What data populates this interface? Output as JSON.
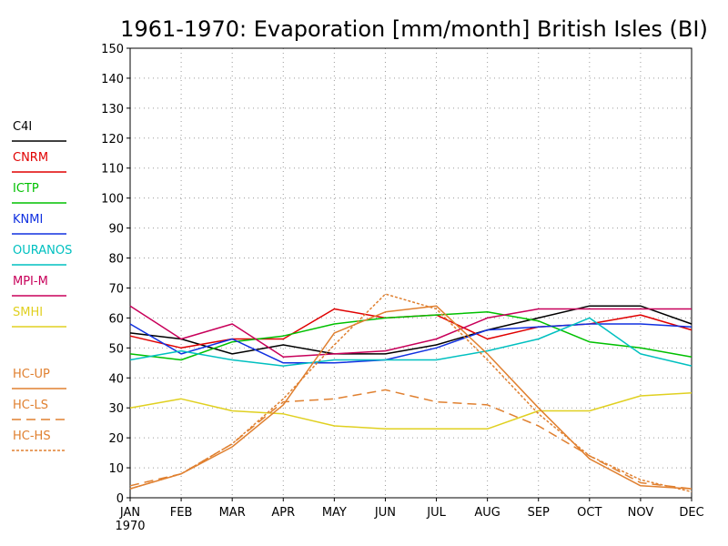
{
  "chart_data": {
    "type": "line",
    "title": "1961-1970: Evaporation [mm/month] British Isles (BI)",
    "categories": [
      "JAN",
      "FEB",
      "MAR",
      "APR",
      "MAY",
      "JUN",
      "JUL",
      "AUG",
      "SEP",
      "OCT",
      "NOV",
      "DEC"
    ],
    "x_sublabel": "1970",
    "ylim": [
      0,
      150
    ],
    "yticks": [
      0,
      10,
      20,
      30,
      40,
      50,
      60,
      70,
      80,
      90,
      100,
      110,
      120,
      130,
      140,
      150
    ],
    "grid": true,
    "legend_position": "left",
    "series": [
      {
        "name": "C4I",
        "color": "#000000",
        "dash": "solid",
        "values": [
          55,
          53,
          48,
          51,
          48,
          48,
          51,
          56,
          60,
          64,
          64,
          58
        ]
      },
      {
        "name": "CNRM",
        "color": "#e00000",
        "dash": "solid",
        "values": [
          54,
          50,
          53,
          53,
          63,
          60,
          61,
          53,
          57,
          58,
          61,
          56
        ]
      },
      {
        "name": "ICTP",
        "color": "#00c000",
        "dash": "solid",
        "values": [
          48,
          46,
          52,
          54,
          58,
          60,
          61,
          62,
          59,
          52,
          50,
          47
        ]
      },
      {
        "name": "KNMI",
        "color": "#1030e0",
        "dash": "solid",
        "values": [
          58,
          48,
          53,
          45,
          45,
          46,
          50,
          56,
          57,
          58,
          58,
          57
        ]
      },
      {
        "name": "OURANOS",
        "color": "#00c0c0",
        "dash": "solid",
        "values": [
          46,
          49,
          46,
          44,
          46,
          46,
          46,
          49,
          53,
          60,
          48,
          44
        ]
      },
      {
        "name": "MPI-M",
        "color": "#c8005a",
        "dash": "solid",
        "values": [
          64,
          53,
          58,
          47,
          48,
          49,
          53,
          60,
          63,
          63,
          63,
          63
        ]
      },
      {
        "name": "SMHI",
        "color": "#e0d020",
        "dash": "solid",
        "values": [
          30,
          33,
          29,
          28,
          24,
          23,
          23,
          23,
          29,
          29,
          34,
          35
        ]
      },
      {
        "name": "HC-UP",
        "color": "#e08030",
        "dash": "solid",
        "values": [
          3,
          8,
          17,
          31,
          55,
          62,
          64,
          48,
          30,
          13,
          4,
          3
        ]
      },
      {
        "name": "HC-LS",
        "color": "#e08030",
        "dash": "long-dash",
        "values": [
          4,
          8,
          18,
          32,
          33,
          36,
          32,
          31,
          24,
          14,
          5,
          3
        ]
      },
      {
        "name": "HC-HS",
        "color": "#e08030",
        "dash": "short-dash",
        "values": [
          3,
          8,
          18,
          33,
          51,
          68,
          63,
          46,
          28,
          14,
          6,
          2
        ]
      }
    ]
  }
}
